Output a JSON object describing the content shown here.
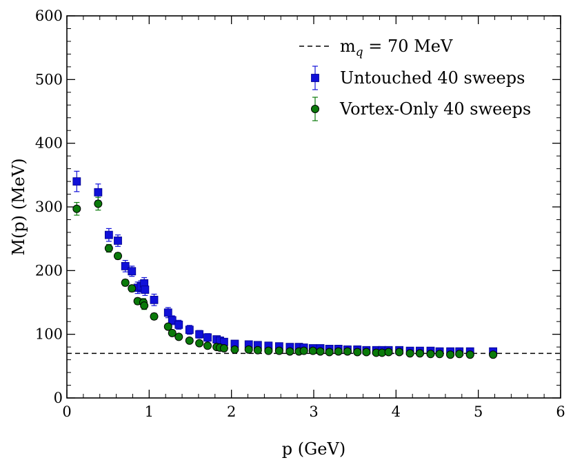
{
  "chart_data": {
    "type": "scatter",
    "title": "",
    "xlabel": "p (GeV)",
    "ylabel": "M(p) (MeV)",
    "xlim": [
      0,
      6
    ],
    "ylim": [
      0,
      600
    ],
    "xticks": [
      "0",
      "1",
      "2",
      "3",
      "4",
      "5",
      "6"
    ],
    "yticks": [
      "0",
      "100",
      "200",
      "300",
      "400",
      "500",
      "600"
    ],
    "grid": false,
    "legend_position": "top-right",
    "reference_line": {
      "legend_base": "m",
      "legend_sub": "q",
      "legend_rest": " = 70 MeV",
      "y": 70,
      "style": "dashed",
      "color": "#000000"
    },
    "series": [
      {
        "name": "Untouched 40 sweeps",
        "marker": "square",
        "color": "#1010d8",
        "x": [
          0.12,
          0.38,
          0.51,
          0.62,
          0.71,
          0.79,
          0.86,
          0.9,
          0.94,
          0.95,
          1.06,
          1.23,
          1.28,
          1.36,
          1.49,
          1.61,
          1.71,
          1.82,
          1.86,
          1.91,
          2.04,
          2.21,
          2.32,
          2.45,
          2.58,
          2.71,
          2.82,
          2.88,
          2.99,
          3.08,
          3.19,
          3.3,
          3.41,
          3.53,
          3.64,
          3.76,
          3.83,
          3.91,
          4.04,
          4.17,
          4.29,
          4.42,
          4.53,
          4.66,
          4.77,
          4.9,
          5.18
        ],
        "y": [
          340,
          323,
          256,
          247,
          207,
          199,
          173,
          175,
          180,
          170,
          154,
          134,
          122,
          115,
          107,
          100,
          95,
          92,
          90,
          88,
          85,
          84,
          83,
          82,
          81,
          80,
          80,
          79,
          78,
          78,
          77,
          77,
          76,
          76,
          75,
          75,
          75,
          75,
          75,
          74,
          74,
          74,
          73,
          73,
          73,
          73,
          73
        ],
        "err": [
          16,
          13,
          10,
          9,
          9,
          8,
          9,
          9,
          9,
          9,
          9,
          8,
          7,
          7,
          7,
          6,
          6,
          5,
          5,
          5,
          5,
          5,
          4,
          4,
          4,
          4,
          4,
          4,
          4,
          4,
          4,
          4,
          4,
          3,
          3,
          3,
          3,
          3,
          3,
          3,
          3,
          3,
          3,
          3,
          3,
          3,
          3
        ]
      },
      {
        "name": "Vortex-Only 40 sweeps",
        "marker": "circle",
        "color": "#0a7a0a",
        "x": [
          0.12,
          0.38,
          0.51,
          0.62,
          0.71,
          0.79,
          0.86,
          0.93,
          0.94,
          1.06,
          1.23,
          1.28,
          1.36,
          1.49,
          1.61,
          1.71,
          1.82,
          1.86,
          1.91,
          2.04,
          2.21,
          2.32,
          2.45,
          2.58,
          2.71,
          2.82,
          2.88,
          2.99,
          3.08,
          3.19,
          3.3,
          3.41,
          3.53,
          3.64,
          3.76,
          3.83,
          3.91,
          4.04,
          4.17,
          4.29,
          4.42,
          4.53,
          4.66,
          4.77,
          4.9,
          5.18
        ],
        "y": [
          297,
          305,
          235,
          223,
          181,
          172,
          152,
          150,
          145,
          128,
          112,
          102,
          96,
          90,
          86,
          82,
          80,
          79,
          78,
          76,
          76,
          75,
          74,
          74,
          73,
          73,
          74,
          74,
          73,
          72,
          73,
          73,
          72,
          72,
          71,
          71,
          72,
          72,
          70,
          70,
          69,
          69,
          68,
          69,
          68,
          68
        ],
        "err": [
          10,
          10,
          6,
          5,
          5,
          5,
          5,
          6,
          6,
          5,
          4,
          4,
          4,
          4,
          3,
          3,
          3,
          3,
          3,
          3,
          3,
          3,
          3,
          3,
          3,
          3,
          3,
          3,
          3,
          3,
          3,
          3,
          3,
          3,
          3,
          3,
          3,
          3,
          3,
          3,
          3,
          3,
          3,
          3,
          3,
          3
        ]
      }
    ]
  }
}
